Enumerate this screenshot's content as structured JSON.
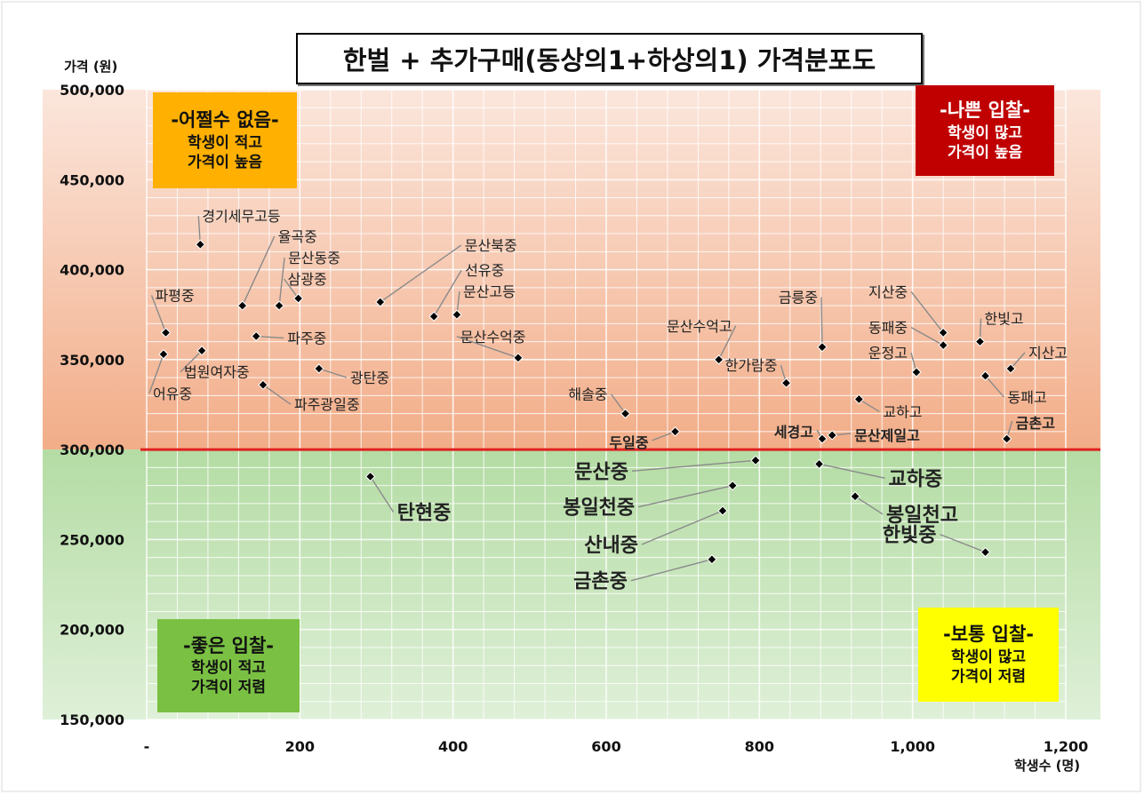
{
  "chart_data": {
    "type": "scatter",
    "title": "한벌 + 추가구매(동상의1+하상의1) 가격분포도",
    "ylabel": "가격 (원)",
    "xlabel": "학생수 (명)",
    "xlim": [
      0,
      1200
    ],
    "ylim": [
      150000,
      500000
    ],
    "x_ticks": [
      0,
      200,
      400,
      600,
      800,
      1000,
      1200
    ],
    "x_tick_labels": [
      "-",
      "200",
      "400",
      "600",
      "800",
      "1,000",
      "1,200"
    ],
    "y_ticks": [
      150000,
      200000,
      250000,
      300000,
      350000,
      400000,
      450000,
      500000
    ],
    "y_tick_labels": [
      "150,000",
      "200,000",
      "250,000",
      "300,000",
      "350,000",
      "400,000",
      "450,000",
      "500,000"
    ],
    "grid": true,
    "threshold": {
      "y": 300000,
      "color": "#e02020"
    },
    "colors": {
      "upper_band_top": "#fbe6dc",
      "upper_band_bottom": "#f2ad88",
      "lower_band_top": "#b4dca4",
      "lower_band_bottom": "#dff0d8",
      "point": "#000000"
    },
    "quadrants": [
      {
        "position": "top-left",
        "title": "-어쩔수 없음-",
        "lines": [
          "학생이 적고",
          "가격이 높음"
        ],
        "bg": "#ffb000",
        "fg": "#111111"
      },
      {
        "position": "top-right",
        "title": "-나쁜 입찰-",
        "lines": [
          "학생이 많고",
          "가격이 높음"
        ],
        "bg": "#c00000",
        "fg": "#ffffff"
      },
      {
        "position": "bottom-left",
        "title": "-좋은 입찰-",
        "lines": [
          "학생이 적고",
          "가격이 저렴"
        ],
        "bg": "#7ac143",
        "fg": "#111111"
      },
      {
        "position": "bottom-right",
        "title": "-보통 입찰-",
        "lines": [
          "학생이 많고",
          "가격이 저렴"
        ],
        "bg": "#ffff00",
        "fg": "#111111"
      }
    ],
    "points": [
      {
        "label": "파평중",
        "x": 25,
        "y": 365000,
        "bold": false
      },
      {
        "label": "어유중",
        "x": 22,
        "y": 353000,
        "bold": false
      },
      {
        "label": "경기세무고등",
        "x": 70,
        "y": 414000,
        "bold": false
      },
      {
        "label": "법원여자중",
        "x": 72,
        "y": 355000,
        "bold": false
      },
      {
        "label": "율곡중",
        "x": 125,
        "y": 380000,
        "bold": false
      },
      {
        "label": "문산동중",
        "x": 173,
        "y": 380000,
        "bold": false
      },
      {
        "label": "삼광중",
        "x": 198,
        "y": 384000,
        "bold": false
      },
      {
        "label": "파주중",
        "x": 143,
        "y": 363000,
        "bold": false
      },
      {
        "label": "파주광일중",
        "x": 152,
        "y": 336000,
        "bold": false
      },
      {
        "label": "광탄중",
        "x": 225,
        "y": 345000,
        "bold": false
      },
      {
        "label": "문산북중",
        "x": 305,
        "y": 382000,
        "bold": false
      },
      {
        "label": "선유중",
        "x": 375,
        "y": 374000,
        "bold": false
      },
      {
        "label": "문산고등",
        "x": 405,
        "y": 375000,
        "bold": false
      },
      {
        "label": "문산수억중",
        "x": 485,
        "y": 351000,
        "bold": false
      },
      {
        "label": "해솔중",
        "x": 625,
        "y": 320000,
        "bold": false
      },
      {
        "label": "두일중",
        "x": 690,
        "y": 310000,
        "bold": true
      },
      {
        "label": "문산수억고",
        "x": 747,
        "y": 350000,
        "bold": false
      },
      {
        "label": "한가람중",
        "x": 835,
        "y": 337000,
        "bold": false
      },
      {
        "label": "금릉중",
        "x": 882,
        "y": 357000,
        "bold": false
      },
      {
        "label": "세경고",
        "x": 882,
        "y": 306000,
        "bold": true
      },
      {
        "label": "문산제일고",
        "x": 895,
        "y": 308000,
        "bold": true
      },
      {
        "label": "교하고",
        "x": 930,
        "y": 328000,
        "bold": false
      },
      {
        "label": "운정고",
        "x": 1005,
        "y": 343000,
        "bold": false
      },
      {
        "label": "지산중",
        "x": 1040,
        "y": 365000,
        "bold": false
      },
      {
        "label": "동패중",
        "x": 1040,
        "y": 358000,
        "bold": false
      },
      {
        "label": "한빛고",
        "x": 1088,
        "y": 360000,
        "bold": false
      },
      {
        "label": "지산고",
        "x": 1128,
        "y": 345000,
        "bold": false
      },
      {
        "label": "동패고",
        "x": 1095,
        "y": 341000,
        "bold": false
      },
      {
        "label": "금촌고",
        "x": 1123,
        "y": 306000,
        "bold": true
      },
      {
        "label": "문산중",
        "x": 795,
        "y": 294000,
        "bold": true
      },
      {
        "label": "봉일천중",
        "x": 765,
        "y": 280000,
        "bold": true
      },
      {
        "label": "산내중",
        "x": 752,
        "y": 266000,
        "bold": true
      },
      {
        "label": "금촌중",
        "x": 738,
        "y": 239000,
        "bold": true
      },
      {
        "label": "탄현중",
        "x": 292,
        "y": 285000,
        "bold": true
      },
      {
        "label": "교하중",
        "x": 878,
        "y": 292000,
        "bold": true
      },
      {
        "label": "봉일천고",
        "x": 925,
        "y": 274000,
        "bold": true
      },
      {
        "label": "한빛중",
        "x": 1095,
        "y": 243000,
        "bold": true
      }
    ]
  }
}
